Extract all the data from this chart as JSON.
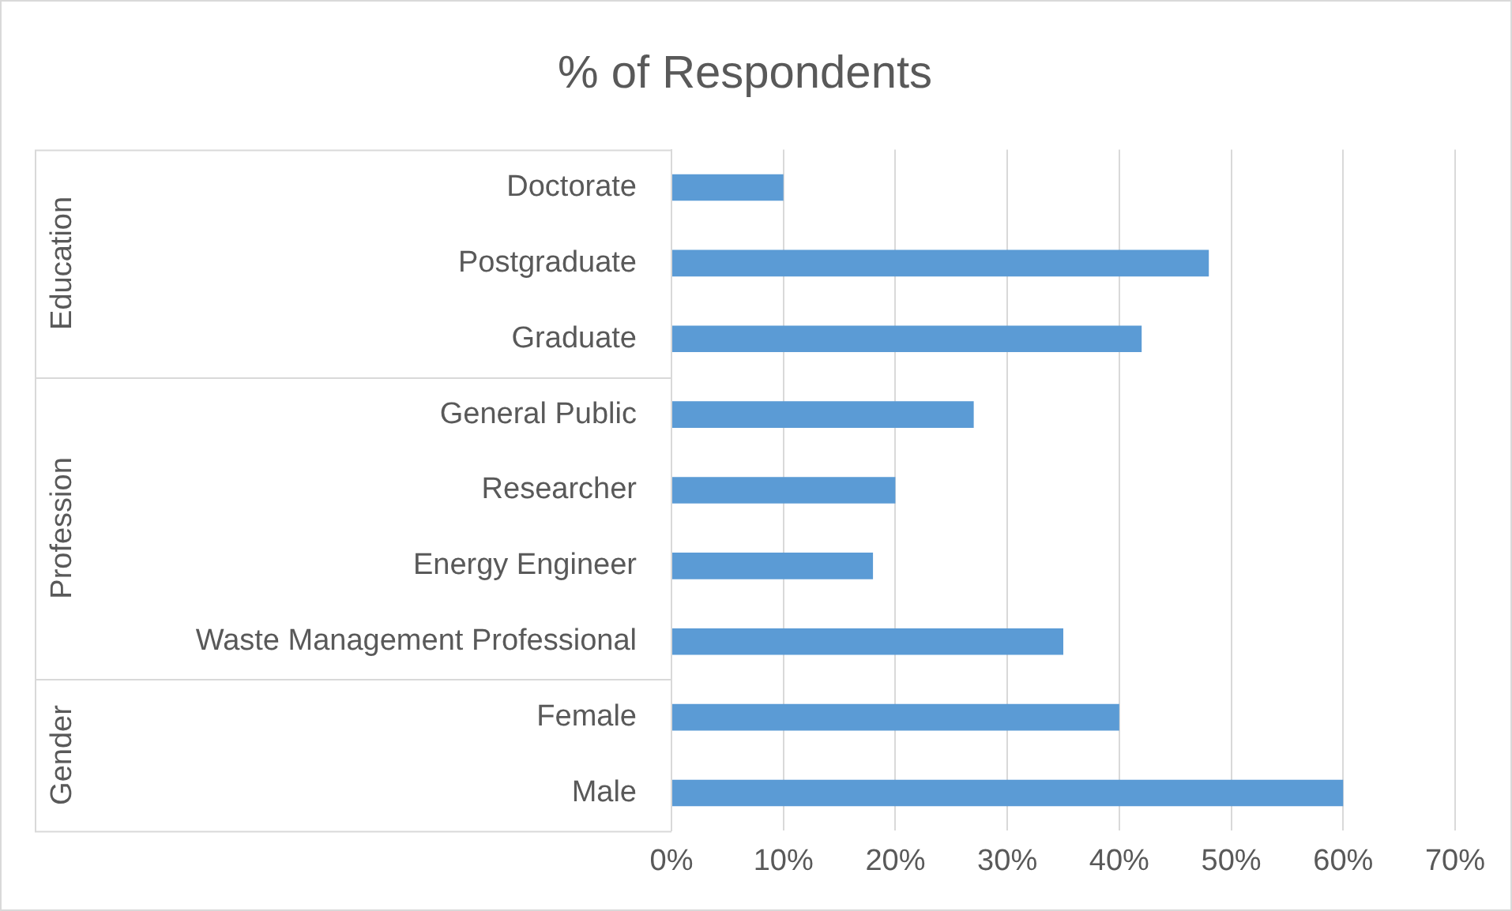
{
  "chart_data": {
    "type": "bar",
    "orientation": "horizontal",
    "title": "% of Respondents",
    "categories": [
      "Doctorate",
      "Postgraduate",
      "Graduate",
      "General Public",
      "Researcher",
      "Energy Engineer",
      "Waste Management Professional",
      "Female",
      "Male"
    ],
    "values": [
      10,
      48,
      42,
      27,
      20,
      18,
      35,
      40,
      60
    ],
    "color": "#5b9bd5",
    "xlim": [
      0,
      70
    ],
    "xticks": [
      {
        "value": 0,
        "label": "0%"
      },
      {
        "value": 10,
        "label": "10%"
      },
      {
        "value": 20,
        "label": "20%"
      },
      {
        "value": 30,
        "label": "30%"
      },
      {
        "value": 40,
        "label": "40%"
      },
      {
        "value": 50,
        "label": "50%"
      },
      {
        "value": 60,
        "label": "60%"
      },
      {
        "value": 70,
        "label": "70%"
      }
    ],
    "grid": "x",
    "legend": false,
    "annotations": [
      "Education",
      "Profession",
      "Gender"
    ]
  }
}
